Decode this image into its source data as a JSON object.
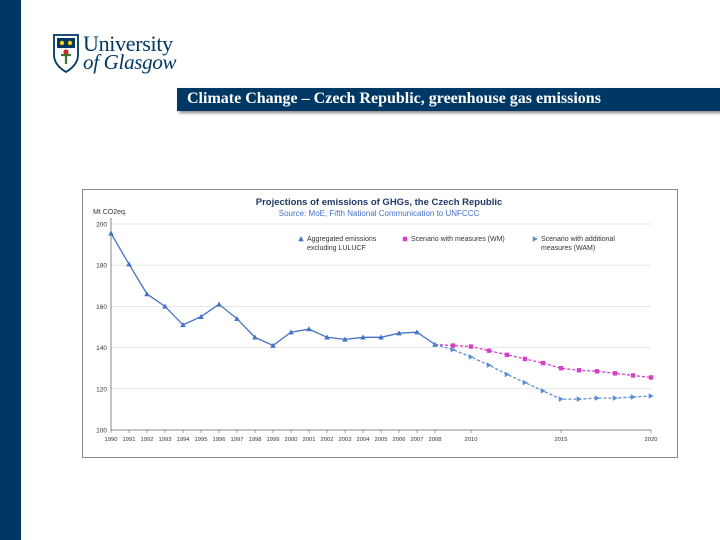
{
  "logo": {
    "line1": "University",
    "line2": "of Glasgow",
    "color": "#003865"
  },
  "slide_title": "Climate Change – Czech Republic, greenhouse gas emissions",
  "chart_data": {
    "type": "line",
    "title": "Projections of emissions of GHGs, the Czech Republic",
    "subtitle": "Source: MoE, Fifth National Communication to UNFCCC",
    "ylabel": "Mt CO2eq.",
    "xlabel": "",
    "ylim": [
      100,
      200
    ],
    "yticks": [
      100,
      120,
      140,
      160,
      180,
      200
    ],
    "xlim": [
      1990,
      2020
    ],
    "xticks": [
      {
        "x": 1990,
        "label": "1990"
      },
      {
        "x": 1991,
        "label": "1991"
      },
      {
        "x": 1992,
        "label": "1992"
      },
      {
        "x": 1993,
        "label": "1993"
      },
      {
        "x": 1994,
        "label": "1994"
      },
      {
        "x": 1995,
        "label": "1995"
      },
      {
        "x": 1996,
        "label": "1996"
      },
      {
        "x": 1997,
        "label": "1997"
      },
      {
        "x": 1998,
        "label": "1998"
      },
      {
        "x": 1999,
        "label": "1999"
      },
      {
        "x": 2000,
        "label": "2000"
      },
      {
        "x": 2001,
        "label": "2001"
      },
      {
        "x": 2002,
        "label": "2002"
      },
      {
        "x": 2003,
        "label": "2003"
      },
      {
        "x": 2004,
        "label": "2004"
      },
      {
        "x": 2005,
        "label": "2005"
      },
      {
        "x": 2006,
        "label": "2006"
      },
      {
        "x": 2007,
        "label": "2007"
      },
      {
        "x": 2008,
        "label": "2008"
      },
      {
        "x": 2010,
        "label": "2010"
      },
      {
        "x": 2015,
        "label": "2015"
      },
      {
        "x": 2020,
        "label": "2020"
      }
    ],
    "legend_position": "top-right",
    "series": [
      {
        "name": "Aggregated emissions excluding LULUCF",
        "legend_lines": [
          "Aggregated emissions",
          "excluding LULUCF"
        ],
        "color": "#4472c4",
        "marker": "triangle",
        "dash": "solid",
        "x": [
          1990,
          1991,
          1992,
          1993,
          1994,
          1995,
          1996,
          1997,
          1998,
          1999,
          2000,
          2001,
          2002,
          2003,
          2004,
          2005,
          2006,
          2007,
          2008
        ],
        "y": [
          195.5,
          180.5,
          166,
          160,
          151,
          155,
          161,
          154,
          145,
          141,
          147.5,
          149,
          145,
          144,
          145,
          145,
          147,
          147.5,
          141.5
        ]
      },
      {
        "name": "Scenario with measures (WM)",
        "legend_lines": [
          "Scenario with measures (WM)"
        ],
        "color": "#d63fc6",
        "marker": "square",
        "dash": "dashed",
        "x": [
          2008,
          2009,
          2010,
          2011,
          2012,
          2013,
          2014,
          2015,
          2016,
          2017,
          2018,
          2019,
          2020
        ],
        "y": [
          141.5,
          141,
          140.5,
          138.5,
          136.5,
          134.5,
          132.5,
          130,
          129,
          128.5,
          127.5,
          126.5,
          125.5
        ]
      },
      {
        "name": "Scenario with additional measures (WAM)",
        "legend_lines": [
          "Scenario with additional",
          "measures (WAM)"
        ],
        "color": "#5b8fd6",
        "marker": "triangle-right",
        "dash": "dashed",
        "x": [
          2008,
          2009,
          2010,
          2011,
          2012,
          2013,
          2014,
          2015,
          2016,
          2017,
          2018,
          2019,
          2020
        ],
        "y": [
          141.5,
          139,
          135.5,
          131.5,
          127,
          123,
          119,
          115,
          115,
          115.5,
          115.5,
          116,
          116.5
        ]
      }
    ]
  }
}
